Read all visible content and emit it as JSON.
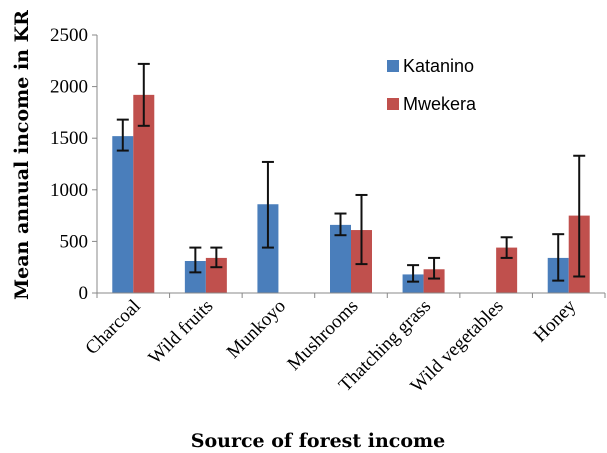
{
  "chart_data": {
    "type": "bar",
    "title": "",
    "xlabel": "Source of forest income",
    "ylabel": "Mean annual income in KR",
    "ylim": [
      0,
      2500
    ],
    "yticks": [
      0,
      500,
      1000,
      1500,
      2000,
      2500
    ],
    "categories": [
      "Charcoal",
      "Wild fruits",
      "Munkoyo",
      "Mushrooms",
      "Thatching grass",
      "Wild vegetables",
      "Honey"
    ],
    "series": [
      {
        "name": "Katanino",
        "color": "#4a7ebb",
        "values": [
          1520,
          310,
          860,
          660,
          180,
          null,
          340
        ],
        "error_low": [
          1380,
          200,
          440,
          560,
          110,
          null,
          120
        ],
        "error_high": [
          1680,
          440,
          1270,
          770,
          270,
          null,
          570
        ]
      },
      {
        "name": "Mwekera",
        "color": "#c0504d",
        "values": [
          1920,
          340,
          null,
          610,
          230,
          440,
          750
        ],
        "error_low": [
          1620,
          250,
          null,
          280,
          140,
          340,
          160
        ],
        "error_high": [
          2220,
          440,
          null,
          950,
          340,
          540,
          1330
        ]
      }
    ],
    "legend_position": "top-right",
    "grid": false
  }
}
